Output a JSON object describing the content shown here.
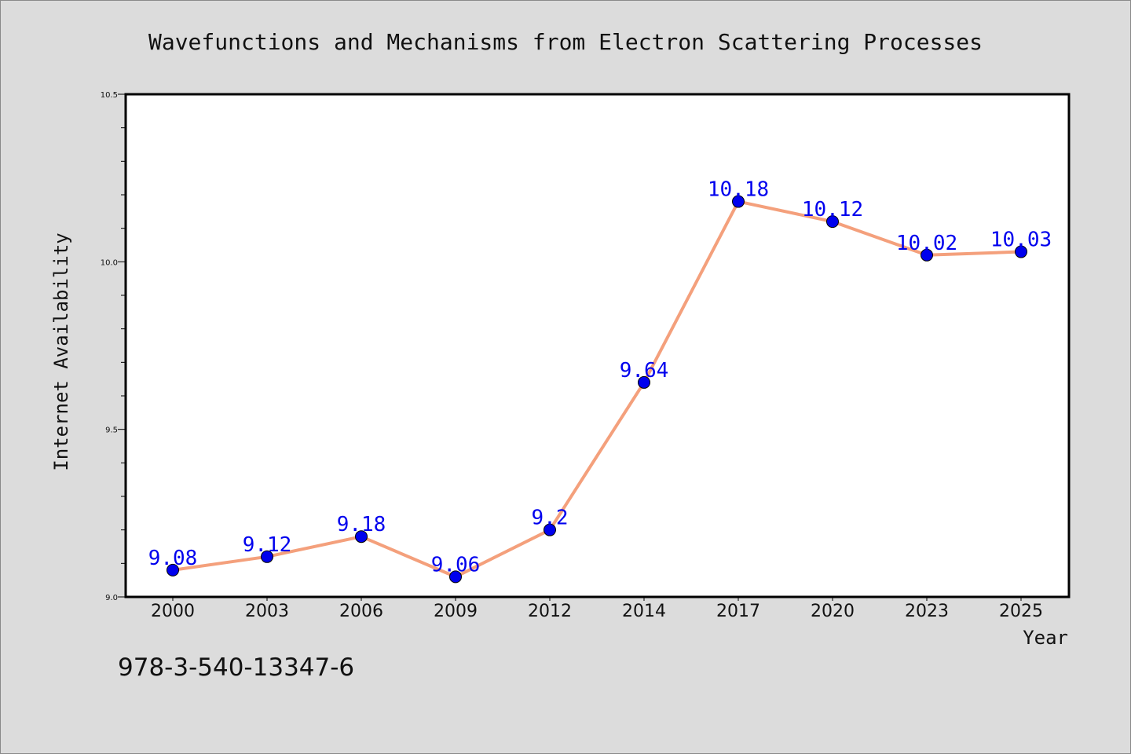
{
  "chart_data": {
    "type": "line",
    "title": "Wavefunctions and Mechanisms from Electron Scattering Processes",
    "xlabel": "Year",
    "ylabel": "Internet Availability",
    "categories": [
      "2000",
      "2003",
      "2006",
      "2009",
      "2012",
      "2014",
      "2017",
      "2020",
      "2023",
      "2025"
    ],
    "series": [
      {
        "values": [
          9.08,
          9.12,
          9.18,
          9.06,
          9.2,
          9.64,
          10.18,
          10.12,
          10.02,
          10.03
        ],
        "data_labels": [
          "9.08",
          "9.12",
          "9.18",
          "9.06",
          "9.2",
          "9.64",
          "10.18",
          "10.12",
          "10.02",
          "10.03"
        ],
        "line_color": "#f4a07c",
        "marker_color": "#0000ee"
      }
    ],
    "ylim": [
      9.0,
      10.5
    ],
    "yticks": [
      9.0,
      9.5,
      10.0,
      10.5
    ],
    "ytick_labels": [
      "9.0",
      "9.5",
      "10.0",
      "10.5"
    ],
    "grid": false,
    "legend": "none",
    "label_color": "#0000ee"
  },
  "footer": {
    "isbn": "978-3-540-13347-6"
  }
}
